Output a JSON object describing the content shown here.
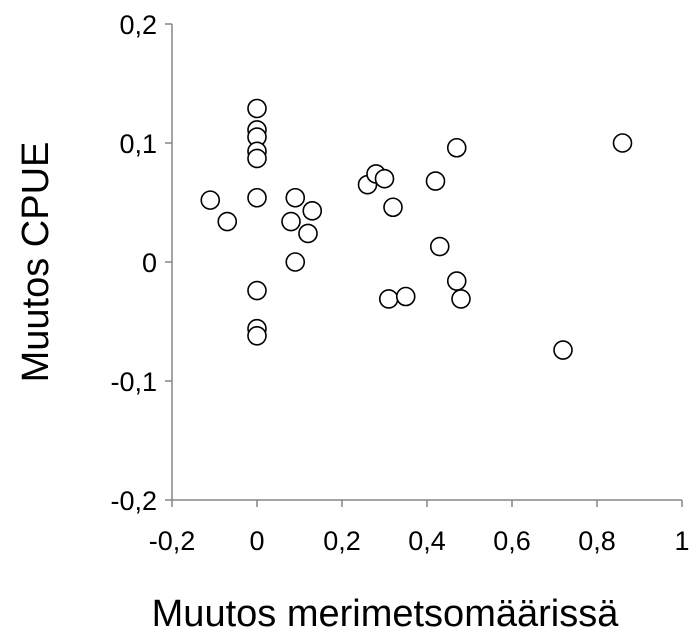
{
  "chart_data": {
    "type": "scatter",
    "title": "",
    "xlabel": "Muutos merimetsomäärissä",
    "ylabel": "Muutos CPUE",
    "xlim": [
      -0.2,
      1
    ],
    "ylim": [
      -0.2,
      0.2
    ],
    "x_ticks": [
      -0.2,
      0,
      0.2,
      0.4,
      0.6,
      0.8,
      1
    ],
    "x_tick_labels": [
      "-0,2",
      "0",
      "0,2",
      "0,4",
      "0,6",
      "0,8",
      "1"
    ],
    "y_ticks": [
      -0.2,
      -0.1,
      0,
      0.1,
      0.2
    ],
    "y_tick_labels": [
      "-0,2",
      "-0,1",
      "0",
      "0,1",
      "0,2"
    ],
    "grid": false,
    "legend": "none",
    "marker": "open-circle",
    "points": [
      {
        "x": -0.11,
        "y": 0.052
      },
      {
        "x": -0.07,
        "y": 0.034
      },
      {
        "x": 0.0,
        "y": 0.129
      },
      {
        "x": 0.0,
        "y": 0.111
      },
      {
        "x": 0.0,
        "y": 0.105
      },
      {
        "x": 0.0,
        "y": 0.093
      },
      {
        "x": 0.0,
        "y": 0.087
      },
      {
        "x": 0.0,
        "y": 0.054
      },
      {
        "x": 0.0,
        "y": -0.024
      },
      {
        "x": 0.0,
        "y": -0.056
      },
      {
        "x": 0.0,
        "y": -0.062
      },
      {
        "x": 0.08,
        "y": 0.034
      },
      {
        "x": 0.09,
        "y": 0.054
      },
      {
        "x": 0.09,
        "y": 0.0
      },
      {
        "x": 0.12,
        "y": 0.024
      },
      {
        "x": 0.13,
        "y": 0.043
      },
      {
        "x": 0.26,
        "y": 0.065
      },
      {
        "x": 0.28,
        "y": 0.074
      },
      {
        "x": 0.3,
        "y": 0.07
      },
      {
        "x": 0.32,
        "y": 0.046
      },
      {
        "x": 0.31,
        "y": -0.031
      },
      {
        "x": 0.35,
        "y": -0.029
      },
      {
        "x": 0.42,
        "y": 0.068
      },
      {
        "x": 0.43,
        "y": 0.013
      },
      {
        "x": 0.47,
        "y": 0.096
      },
      {
        "x": 0.47,
        "y": -0.016
      },
      {
        "x": 0.48,
        "y": -0.031
      },
      {
        "x": 0.72,
        "y": -0.074
      },
      {
        "x": 0.86,
        "y": 0.1
      }
    ]
  }
}
